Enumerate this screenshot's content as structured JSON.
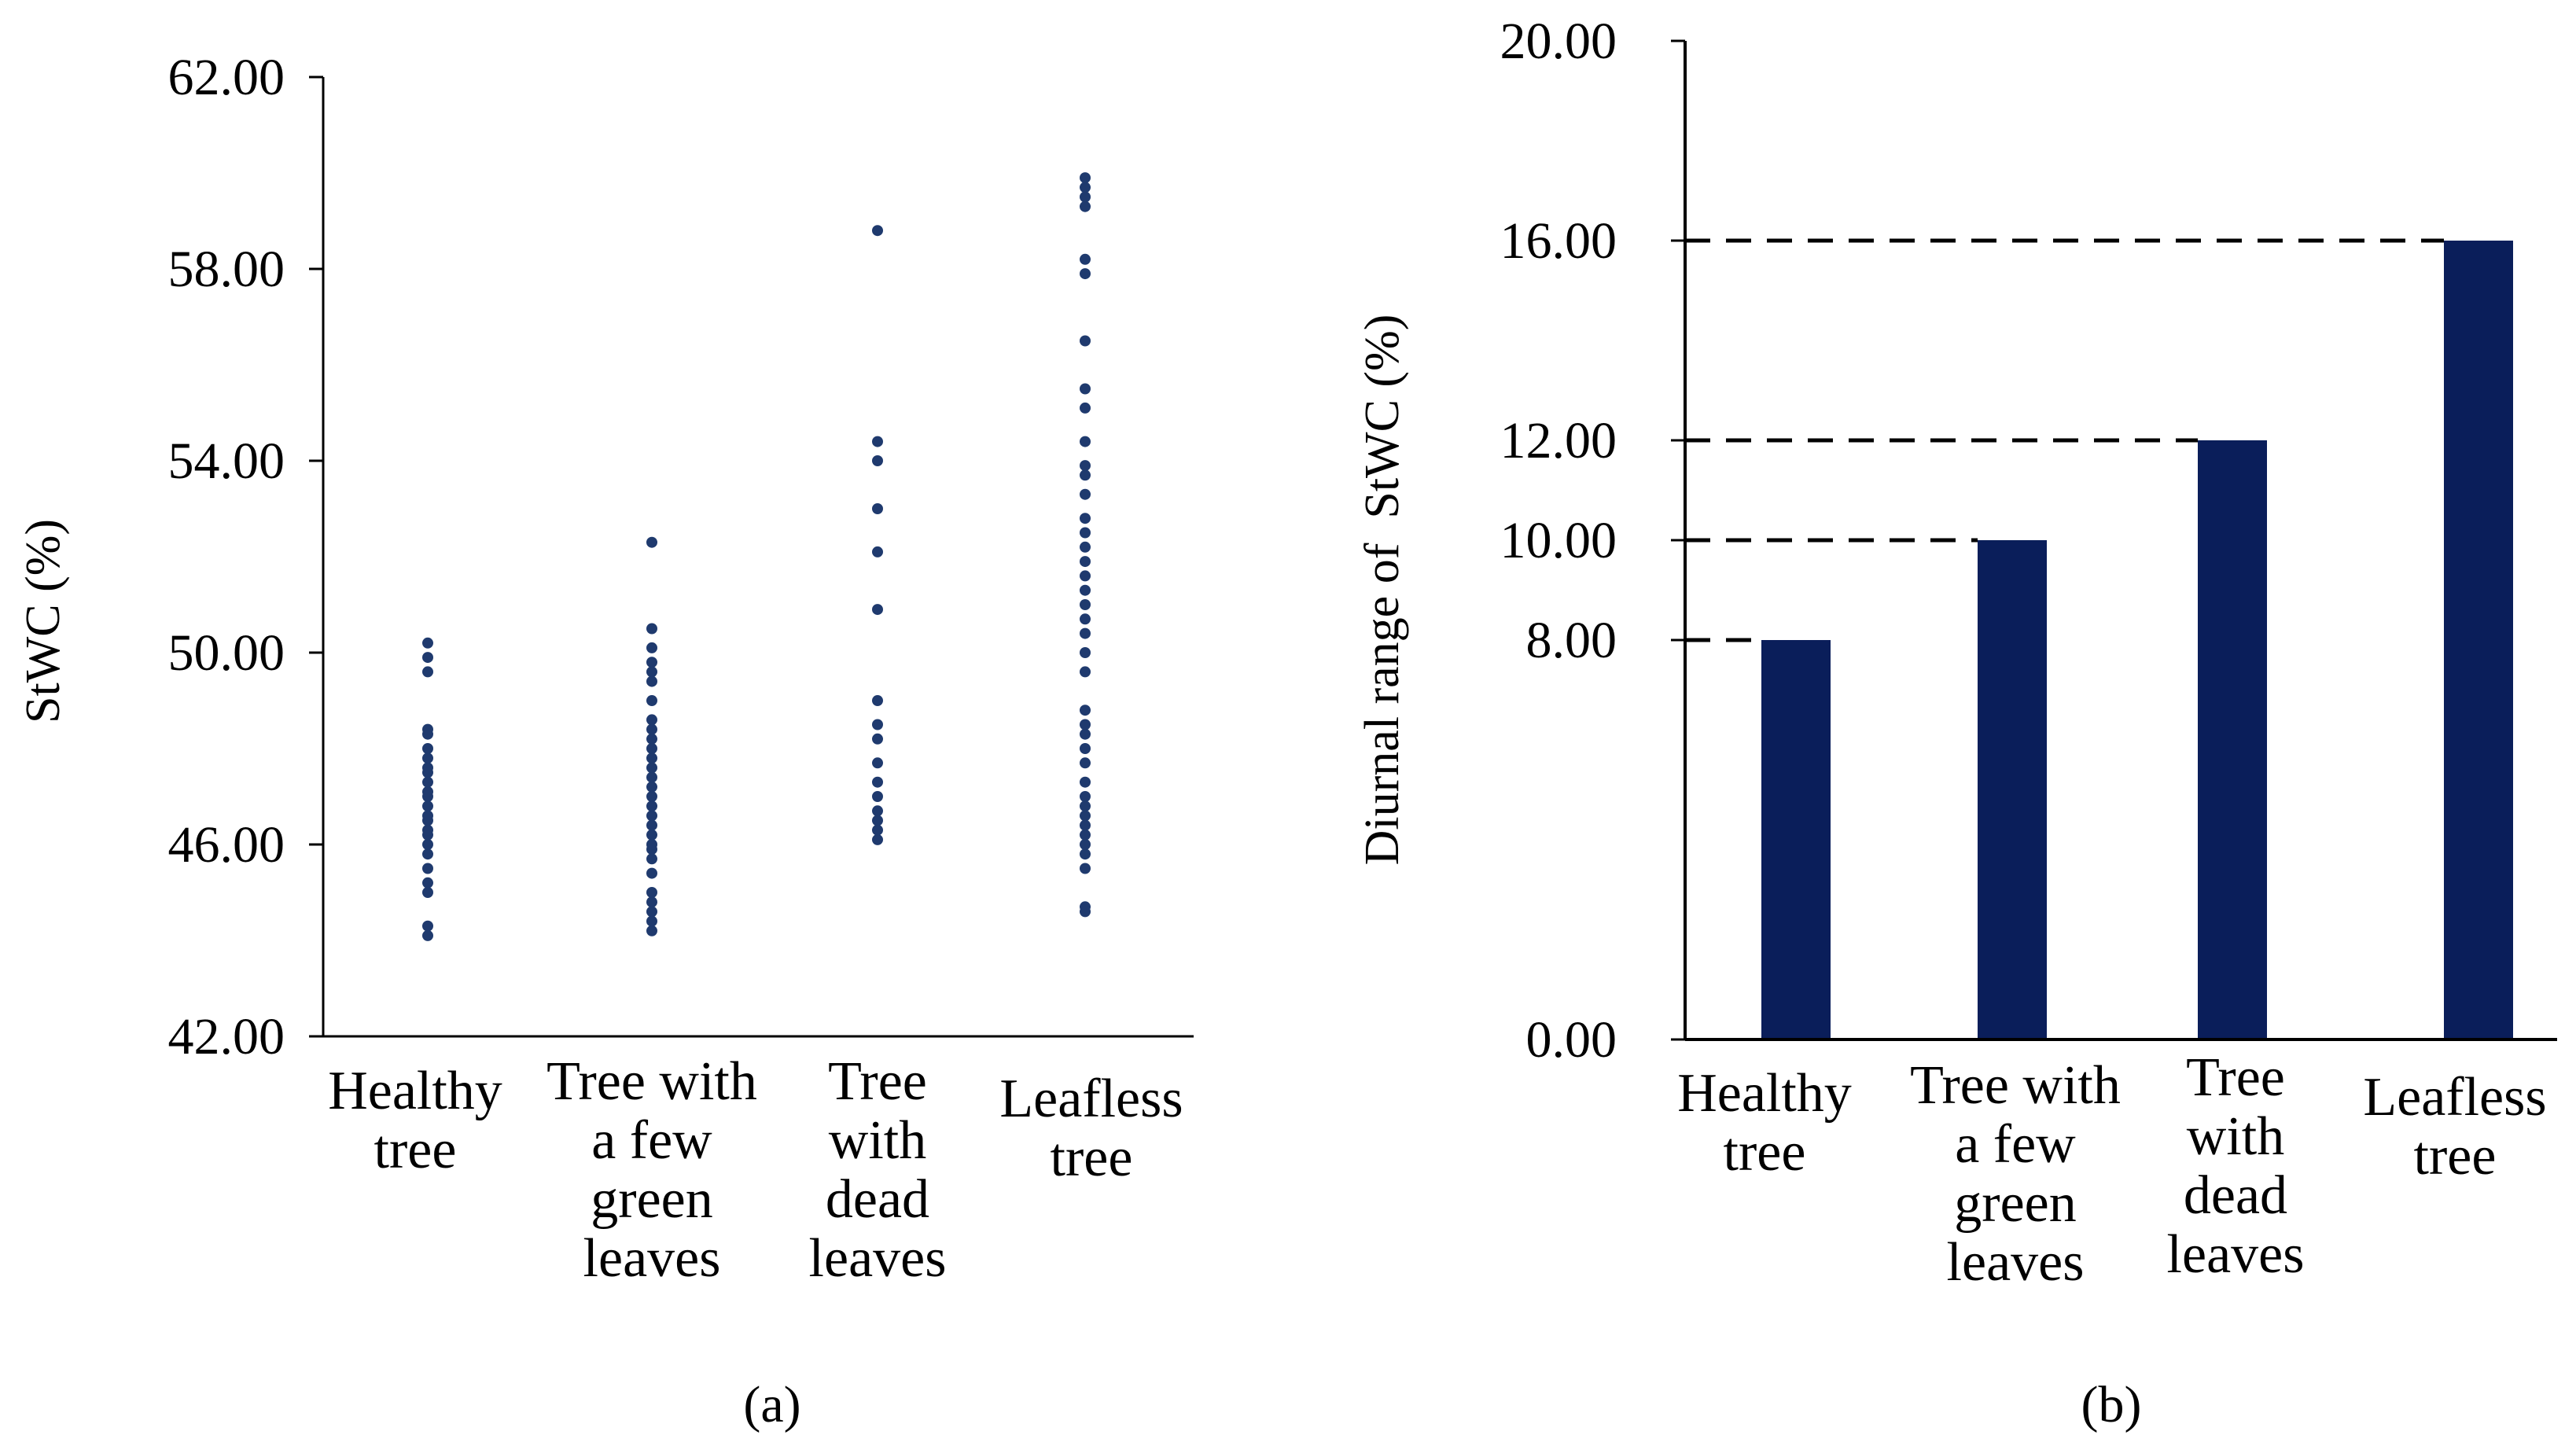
{
  "chart_data": [
    {
      "type": "scatter",
      "panel_label": "(a)",
      "title": "",
      "xlabel": "",
      "ylabel": "StWC (%)",
      "ylim": [
        42,
        62
      ],
      "yticks": [
        "62.00",
        "58.00",
        "54.00",
        "50.00",
        "46.00",
        "42.00"
      ],
      "grid": false,
      "legend": "none",
      "marker_color": "#1f3a6e",
      "categories": [
        [
          "Healthy",
          "tree"
        ],
        [
          "Tree with",
          "a few",
          "green",
          "leaves"
        ],
        [
          "Tree",
          "with",
          "dead",
          "leaves"
        ],
        [
          "Leafless",
          "tree"
        ]
      ],
      "points": [
        [
          44.1,
          44.3,
          45.0,
          45.2,
          45.5,
          45.8,
          46.0,
          46.2,
          46.3,
          46.5,
          46.6,
          46.8,
          47.0,
          47.1,
          47.3,
          47.5,
          47.6,
          47.8,
          48.0,
          48.3,
          48.4,
          49.6,
          49.9,
          50.2
        ],
        [
          44.2,
          44.4,
          44.6,
          44.8,
          45.0,
          45.4,
          45.7,
          45.9,
          46.0,
          46.2,
          46.4,
          46.6,
          46.8,
          47.0,
          47.2,
          47.4,
          47.6,
          47.8,
          48.0,
          48.2,
          48.4,
          48.6,
          49.0,
          49.4,
          49.6,
          49.8,
          50.1,
          50.5,
          52.3
        ],
        [
          46.1,
          46.3,
          46.5,
          46.7,
          47.0,
          47.3,
          47.7,
          48.2,
          48.5,
          49.0,
          50.9,
          52.1,
          53.0,
          54.0,
          54.4,
          58.8
        ],
        [
          44.6,
          44.7,
          45.5,
          45.8,
          46.0,
          46.2,
          46.4,
          46.6,
          46.8,
          47.0,
          47.3,
          47.7,
          48.0,
          48.3,
          48.5,
          48.8,
          49.6,
          50.0,
          50.4,
          50.7,
          51.0,
          51.3,
          51.6,
          51.9,
          52.2,
          52.5,
          52.8,
          53.3,
          53.7,
          53.9,
          54.4,
          55.1,
          55.5,
          56.5,
          57.9,
          58.2,
          59.3,
          59.5,
          59.7,
          59.9
        ]
      ]
    },
    {
      "type": "bar",
      "panel_label": "(b)",
      "title": "",
      "xlabel": "",
      "ylabel": "Diurnal range of  StWC (%)",
      "ylim": [
        0,
        20
      ],
      "yticks": [
        "0.00",
        "8.00",
        "10.00",
        "12.00",
        "16.00",
        "20.00"
      ],
      "grid": false,
      "legend": "none",
      "bar_color": "#0a1e5a",
      "categories": [
        [
          "Healthy",
          "tree"
        ],
        [
          "Tree with",
          "a few",
          "green",
          "leaves"
        ],
        [
          "Tree",
          "with",
          "dead",
          "leaves"
        ],
        [
          "Leafless",
          "tree"
        ]
      ],
      "values": [
        8.0,
        10.0,
        12.0,
        16.0
      ],
      "reference_lines": [
        8.0,
        10.0,
        12.0,
        16.0
      ]
    }
  ]
}
